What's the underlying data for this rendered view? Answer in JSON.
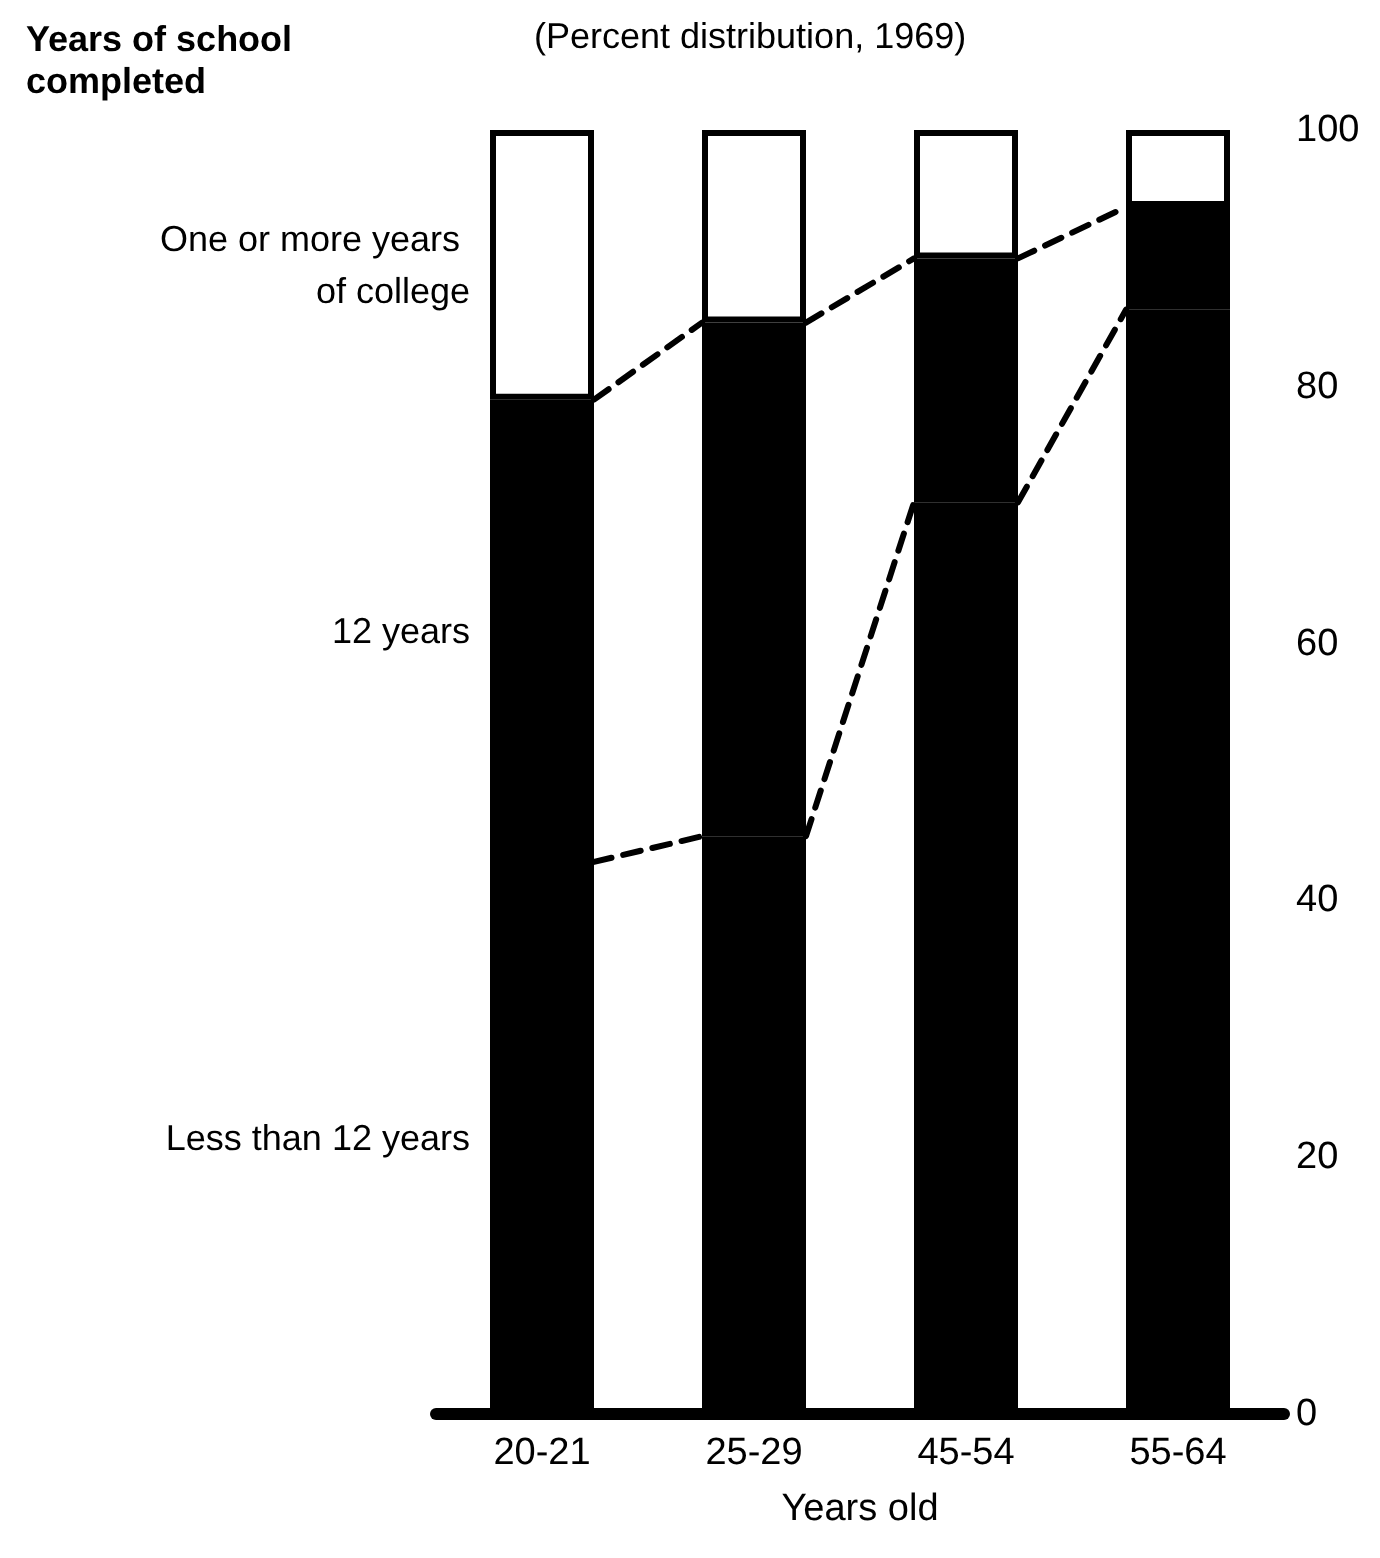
{
  "chart_data": {
    "type": "bar",
    "stacked": true,
    "legend_title": "Years of school completed",
    "subtitle": "(Percent distribution, 1969)",
    "xlabel": "Years old",
    "categories": [
      "20-21",
      "25-29",
      "45-54",
      "55-64"
    ],
    "series": [
      {
        "name": "Less than 12 years",
        "color": "#000000",
        "values": [
          43,
          45,
          71,
          86
        ]
      },
      {
        "name": "12 years",
        "color": "#000000",
        "values": [
          36,
          40,
          19,
          8
        ]
      },
      {
        "name": "One or more years of college",
        "color": "#ffffff",
        "values": [
          21,
          15,
          10,
          6
        ]
      }
    ],
    "ylim": [
      0,
      100
    ],
    "yticks": [
      0,
      20,
      40,
      60,
      80,
      100
    ],
    "grid": false,
    "legend": false,
    "line_style": "dashed"
  }
}
